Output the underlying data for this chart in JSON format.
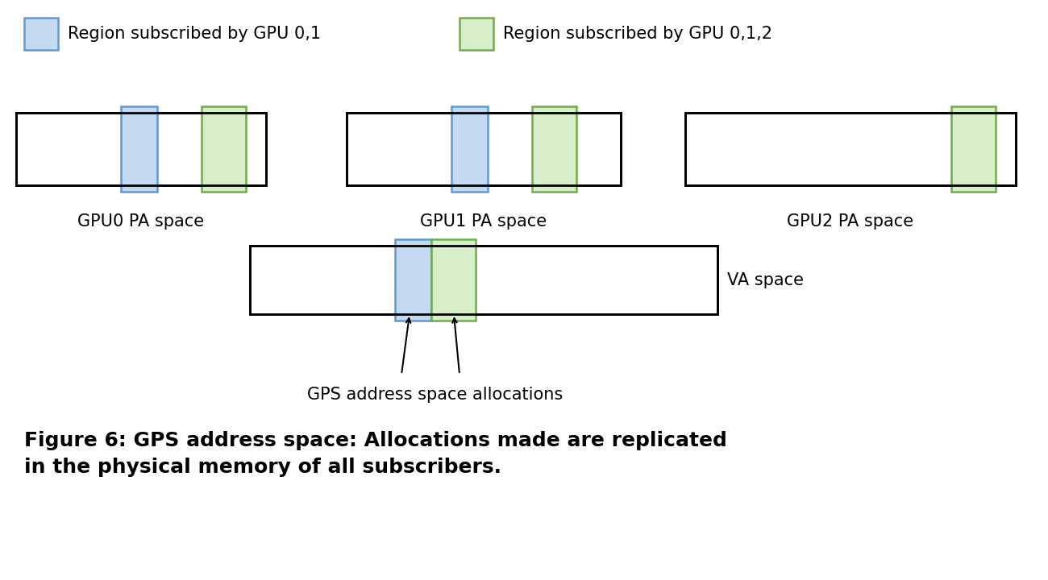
{
  "fig_width": 13.0,
  "fig_height": 7.2,
  "dpi": 100,
  "bg_color": "#ffffff",
  "blue_color": "#c5d9f1",
  "blue_edge": "#5b9bd5",
  "green_color": "#d8eecb",
  "green_edge": "#70ad47",
  "box_edge_color": "#000000",
  "box_fill_color": "#ffffff",
  "legend1_text": "Region subscribed by GPU 0,1",
  "legend2_text": "Region subscribed by GPU 0,1,2",
  "gpu0_label": "GPU0 PA space",
  "gpu1_label": "GPU1 PA space",
  "gpu2_label": "GPU2 PA space",
  "va_label": "VA space",
  "arrow_label": "GPS address space allocations",
  "caption": "Figure 6: GPS address space: Allocations made are replicated\nin the physical memory of all subscribers.",
  "caption_fontsize": 18,
  "label_fontsize": 15,
  "legend_fontsize": 15,
  "legend_patch_fontsize": 15
}
